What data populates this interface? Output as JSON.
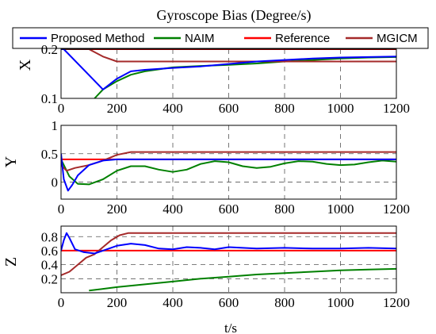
{
  "chart_data": {
    "type": "line",
    "title": "Gyroscope Bias (Degree/s)",
    "xlabel": "t/s",
    "x_ticks": [
      0,
      200,
      400,
      600,
      800,
      1000,
      1200
    ],
    "xlim": [
      0,
      1200
    ],
    "grid": "dashed",
    "legend": {
      "placement": "top",
      "entries": [
        "Proposed Method",
        "NAIM",
        "Reference",
        "MGICM"
      ]
    },
    "colors": {
      "Proposed Method": "#0000ff",
      "NAIM": "#008000",
      "Reference": "#ff0000",
      "MGICM": "#a52a2a"
    },
    "panels": [
      {
        "ylabel": "X",
        "ylim": [
          0.1,
          0.2
        ],
        "y_ticks": [
          0.1,
          0.2
        ],
        "series": [
          {
            "name": "Proposed Method",
            "x": [
              0,
              5,
              10,
              150,
              200,
              250,
              300,
              400,
              500,
              600,
              700,
              800,
              900,
              1000,
              1100,
              1200
            ],
            "y": [
              0.2,
              0.2,
              0.2,
              0.118,
              0.14,
              0.155,
              0.158,
              0.162,
              0.165,
              0.17,
              0.175,
              0.178,
              0.181,
              0.183,
              0.184,
              0.185
            ]
          },
          {
            "name": "NAIM",
            "x": [
              120,
              150,
              200,
              250,
              300,
              400,
              500,
              600,
              700,
              800,
              900,
              1000,
              1100,
              1200
            ],
            "y": [
              0.1,
              0.118,
              0.135,
              0.148,
              0.155,
              0.163,
              0.166,
              0.168,
              0.171,
              0.175,
              0.178,
              0.181,
              0.183,
              0.184
            ]
          },
          {
            "name": "Reference",
            "x": [
              0,
              1200
            ],
            "y": [
              0.2,
              0.2
            ]
          },
          {
            "name": "MGICM",
            "x": [
              0,
              100,
              150,
              200,
              1200
            ],
            "y": [
              0.2,
              0.2,
              0.185,
              0.175,
              0.175
            ]
          }
        ]
      },
      {
        "ylabel": "Y",
        "ylim": [
          -0.3,
          1.0
        ],
        "y_ticks": [
          0,
          0.5,
          1
        ],
        "series": [
          {
            "name": "Proposed Method",
            "x": [
              0,
              10,
              25,
              40,
              60,
              100,
              150,
              200,
              300,
              400,
              600,
              800,
              1000,
              1200
            ],
            "y": [
              0.5,
              0.05,
              -0.15,
              -0.05,
              0.12,
              0.3,
              0.38,
              0.4,
              0.4,
              0.4,
              0.4,
              0.4,
              0.4,
              0.4
            ]
          },
          {
            "name": "NAIM",
            "x": [
              0,
              30,
              60,
              100,
              150,
              200,
              250,
              300,
              350,
              400,
              450,
              500,
              550,
              600,
              650,
              700,
              750,
              800,
              850,
              900,
              950,
              1000,
              1050,
              1100,
              1150,
              1200
            ],
            "y": [
              0.4,
              0.1,
              -0.03,
              -0.04,
              0.05,
              0.2,
              0.28,
              0.28,
              0.22,
              0.18,
              0.22,
              0.32,
              0.37,
              0.35,
              0.28,
              0.25,
              0.27,
              0.33,
              0.37,
              0.36,
              0.32,
              0.3,
              0.31,
              0.35,
              0.38,
              0.36
            ]
          },
          {
            "name": "Reference",
            "x": [
              0,
              1200
            ],
            "y": [
              0.4,
              0.4
            ]
          },
          {
            "name": "MGICM",
            "x": [
              0,
              20,
              50,
              100,
              150,
              200,
              250,
              1200
            ],
            "y": [
              0.3,
              0.2,
              0.25,
              0.3,
              0.38,
              0.48,
              0.53,
              0.53
            ]
          }
        ]
      },
      {
        "ylabel": "Z",
        "ylim": [
          0,
          0.95
        ],
        "y_ticks": [
          0.2,
          0.4,
          0.6,
          0.8
        ],
        "series": [
          {
            "name": "Proposed Method",
            "x": [
              0,
              10,
              20,
              30,
              50,
              80,
              120,
              150,
              200,
              250,
              300,
              350,
              400,
              450,
              500,
              550,
              600,
              700,
              800,
              900,
              1000,
              1100,
              1200
            ],
            "y": [
              0.6,
              0.75,
              0.85,
              0.78,
              0.62,
              0.58,
              0.56,
              0.6,
              0.67,
              0.7,
              0.68,
              0.63,
              0.62,
              0.65,
              0.64,
              0.62,
              0.65,
              0.63,
              0.64,
              0.63,
              0.63,
              0.64,
              0.63
            ]
          },
          {
            "name": "NAIM",
            "x": [
              100,
              200,
              300,
              400,
              500,
              600,
              700,
              800,
              900,
              1000,
              1100,
              1200
            ],
            "y": [
              0.03,
              0.08,
              0.12,
              0.16,
              0.2,
              0.23,
              0.26,
              0.28,
              0.3,
              0.32,
              0.33,
              0.34
            ]
          },
          {
            "name": "Reference",
            "x": [
              0,
              1200
            ],
            "y": [
              0.6,
              0.6
            ]
          },
          {
            "name": "MGICM",
            "x": [
              0,
              30,
              60,
              90,
              120,
              150,
              180,
              210,
              240,
              1200
            ],
            "y": [
              0.25,
              0.3,
              0.4,
              0.5,
              0.55,
              0.65,
              0.75,
              0.82,
              0.85,
              0.85
            ]
          }
        ]
      }
    ]
  }
}
